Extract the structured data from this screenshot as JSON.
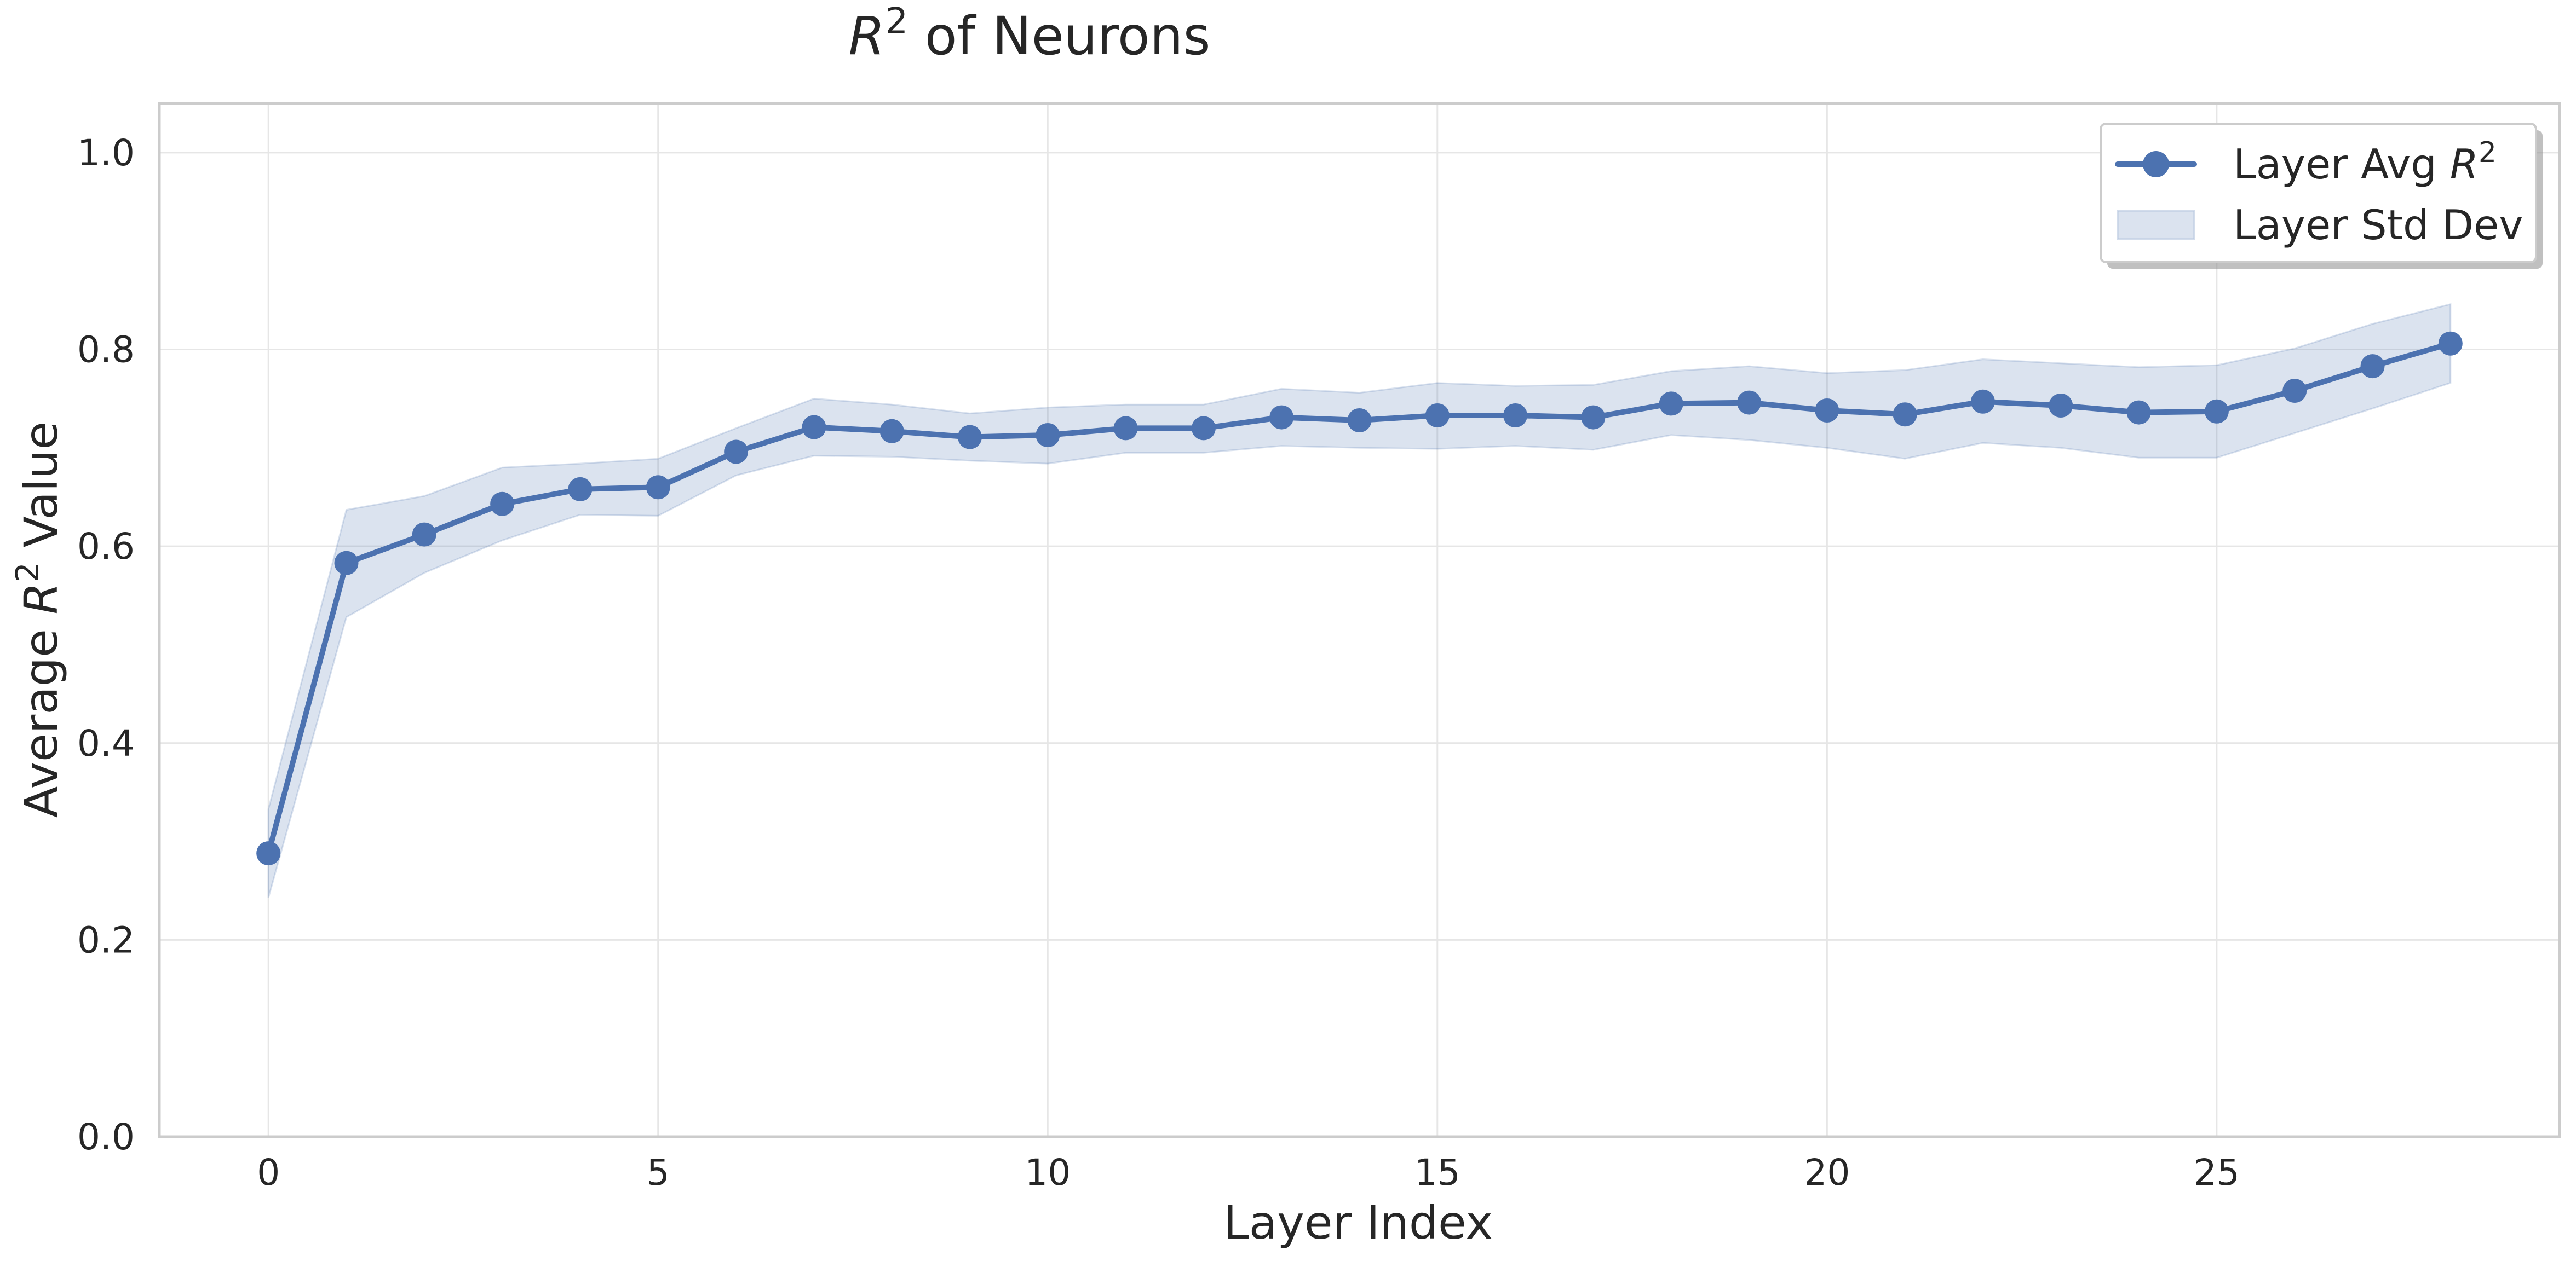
{
  "chart_data": {
    "type": "line",
    "title": {
      "base": "R",
      "sup": "2",
      "rest": " of Neurons"
    },
    "xlabel": "Layer Index",
    "ylabel": {
      "pre": "Average ",
      "base": "R",
      "sup": "2",
      "post": " Value"
    },
    "xlim": [
      -1.4,
      29.4
    ],
    "ylim": [
      0.0,
      1.05
    ],
    "xticks": [
      "0",
      "5",
      "10",
      "15",
      "20",
      "25"
    ],
    "yticks": [
      "0.0",
      "0.2",
      "0.4",
      "0.6",
      "0.8",
      "1.0"
    ],
    "grid": true,
    "legend_position": "top-right",
    "colors": {
      "line": "#4c72b0",
      "band": "#4c72b0",
      "grid": "#e6e6e6",
      "axis": "#cccccc"
    },
    "legend": {
      "line": {
        "pre": "Layer Avg ",
        "base": "R",
        "sup": "2"
      },
      "band": "Layer Std Dev"
    },
    "x": [
      0,
      1,
      2,
      3,
      4,
      5,
      6,
      7,
      8,
      9,
      10,
      11,
      12,
      13,
      14,
      15,
      16,
      17,
      18,
      19,
      20,
      21,
      22,
      23,
      24,
      25,
      26,
      27,
      28
    ],
    "series": [
      {
        "values": [
          0.288,
          0.583,
          0.612,
          0.643,
          0.658,
          0.66,
          0.696,
          0.721,
          0.717,
          0.711,
          0.713,
          0.72,
          0.72,
          0.731,
          0.728,
          0.733,
          0.733,
          0.731,
          0.745,
          0.746,
          0.738,
          0.734,
          0.747,
          0.743,
          0.736,
          0.737,
          0.758,
          0.783,
          0.806
        ],
        "lower": [
          0.243,
          0.528,
          0.573,
          0.606,
          0.632,
          0.631,
          0.672,
          0.692,
          0.691,
          0.687,
          0.684,
          0.695,
          0.695,
          0.702,
          0.7,
          0.699,
          0.702,
          0.698,
          0.713,
          0.708,
          0.7,
          0.689,
          0.705,
          0.7,
          0.69,
          0.69,
          0.715,
          0.74,
          0.766
        ],
        "upper": [
          0.333,
          0.637,
          0.651,
          0.68,
          0.684,
          0.689,
          0.72,
          0.75,
          0.744,
          0.735,
          0.741,
          0.744,
          0.744,
          0.76,
          0.756,
          0.766,
          0.763,
          0.764,
          0.778,
          0.783,
          0.776,
          0.779,
          0.79,
          0.786,
          0.782,
          0.784,
          0.801,
          0.826,
          0.846
        ]
      }
    ]
  }
}
